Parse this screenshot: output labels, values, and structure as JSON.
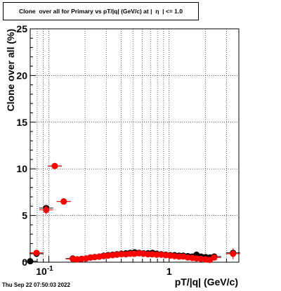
{
  "chart_data": {
    "type": "scatter",
    "title": "Clone  over all for Primary vs pT/|q| (GeV/c) at |  η  | <= 1.0",
    "xlabel": "pT/|q| (GeV/c)",
    "ylabel": "Clone  over all (%)",
    "xscale": "log",
    "xlim": [
      0.07,
      3.8
    ],
    "ylim": [
      0,
      25
    ],
    "grid": true,
    "x_ticks": [
      {
        "value": 0.1,
        "label": "10",
        "exp": "-1"
      },
      {
        "value": 1,
        "label": "1",
        "exp": ""
      }
    ],
    "y_ticks": [
      0,
      5,
      10,
      15,
      20,
      25
    ],
    "series": [
      {
        "color": "#000000",
        "marker": "circle",
        "x": [
          0.07,
          0.079,
          0.095,
          0.112,
          0.133,
          0.158,
          0.172,
          0.187,
          0.204,
          0.222,
          0.241,
          0.263,
          0.286,
          0.311,
          0.339,
          0.369,
          0.401,
          0.437,
          0.475,
          0.517,
          0.563,
          0.613,
          0.667,
          0.726,
          0.79,
          0.86,
          0.936,
          1.02,
          1.11,
          1.21,
          1.31,
          1.43,
          1.56,
          1.69,
          1.84,
          2.01,
          2.18,
          2.37,
          3.4
        ],
        "y": [
          0.1,
          0.9,
          5.8,
          10.3,
          6.5,
          0.4,
          0.3,
          0.35,
          0.4,
          0.5,
          0.55,
          0.6,
          0.7,
          0.75,
          0.8,
          0.85,
          0.9,
          0.95,
          1.0,
          1.05,
          1.0,
          0.95,
          0.95,
          1.0,
          0.9,
          0.85,
          0.8,
          0.75,
          0.75,
          0.7,
          0.7,
          0.65,
          0.6,
          0.8,
          0.6,
          0.55,
          0.5,
          0.6,
          1.0
        ]
      },
      {
        "color": "#ff0000",
        "marker": "circle",
        "x": [
          0.079,
          0.095,
          0.112,
          0.133,
          0.158,
          0.172,
          0.187,
          0.204,
          0.222,
          0.241,
          0.263,
          0.286,
          0.311,
          0.339,
          0.369,
          0.401,
          0.437,
          0.475,
          0.517,
          0.563,
          0.613,
          0.667,
          0.726,
          0.79,
          0.86,
          0.936,
          1.02,
          1.11,
          1.21,
          1.31,
          1.43,
          1.56,
          1.69,
          1.84,
          2.01,
          2.18,
          2.37,
          3.4
        ],
        "y": [
          1.0,
          5.6,
          10.3,
          6.5,
          0.35,
          0.3,
          0.35,
          0.4,
          0.5,
          0.55,
          0.6,
          0.65,
          0.7,
          0.75,
          0.8,
          0.85,
          0.85,
          0.9,
          0.9,
          0.95,
          0.9,
          0.85,
          0.85,
          0.8,
          0.8,
          0.75,
          0.7,
          0.65,
          0.6,
          0.6,
          0.5,
          0.45,
          0.4,
          0.35,
          0.3,
          0.25,
          0.5,
          0.9
        ],
        "yerr": [
          0.3,
          0.5,
          0.3,
          0.3,
          0.1,
          0.1,
          0.1,
          0.1,
          0.1,
          0.1,
          0.1,
          0.1,
          0.1,
          0.1,
          0.1,
          0.1,
          0.1,
          0.1,
          0.1,
          0.1,
          0.1,
          0.1,
          0.1,
          0.1,
          0.1,
          0.1,
          0.1,
          0.1,
          0.1,
          0.1,
          0.1,
          0.1,
          0.1,
          0.1,
          0.1,
          0.15,
          0.2,
          0.6
        ]
      }
    ]
  },
  "footer": {
    "timestamp": "Thu Sep 22 07:50:03 2022"
  }
}
